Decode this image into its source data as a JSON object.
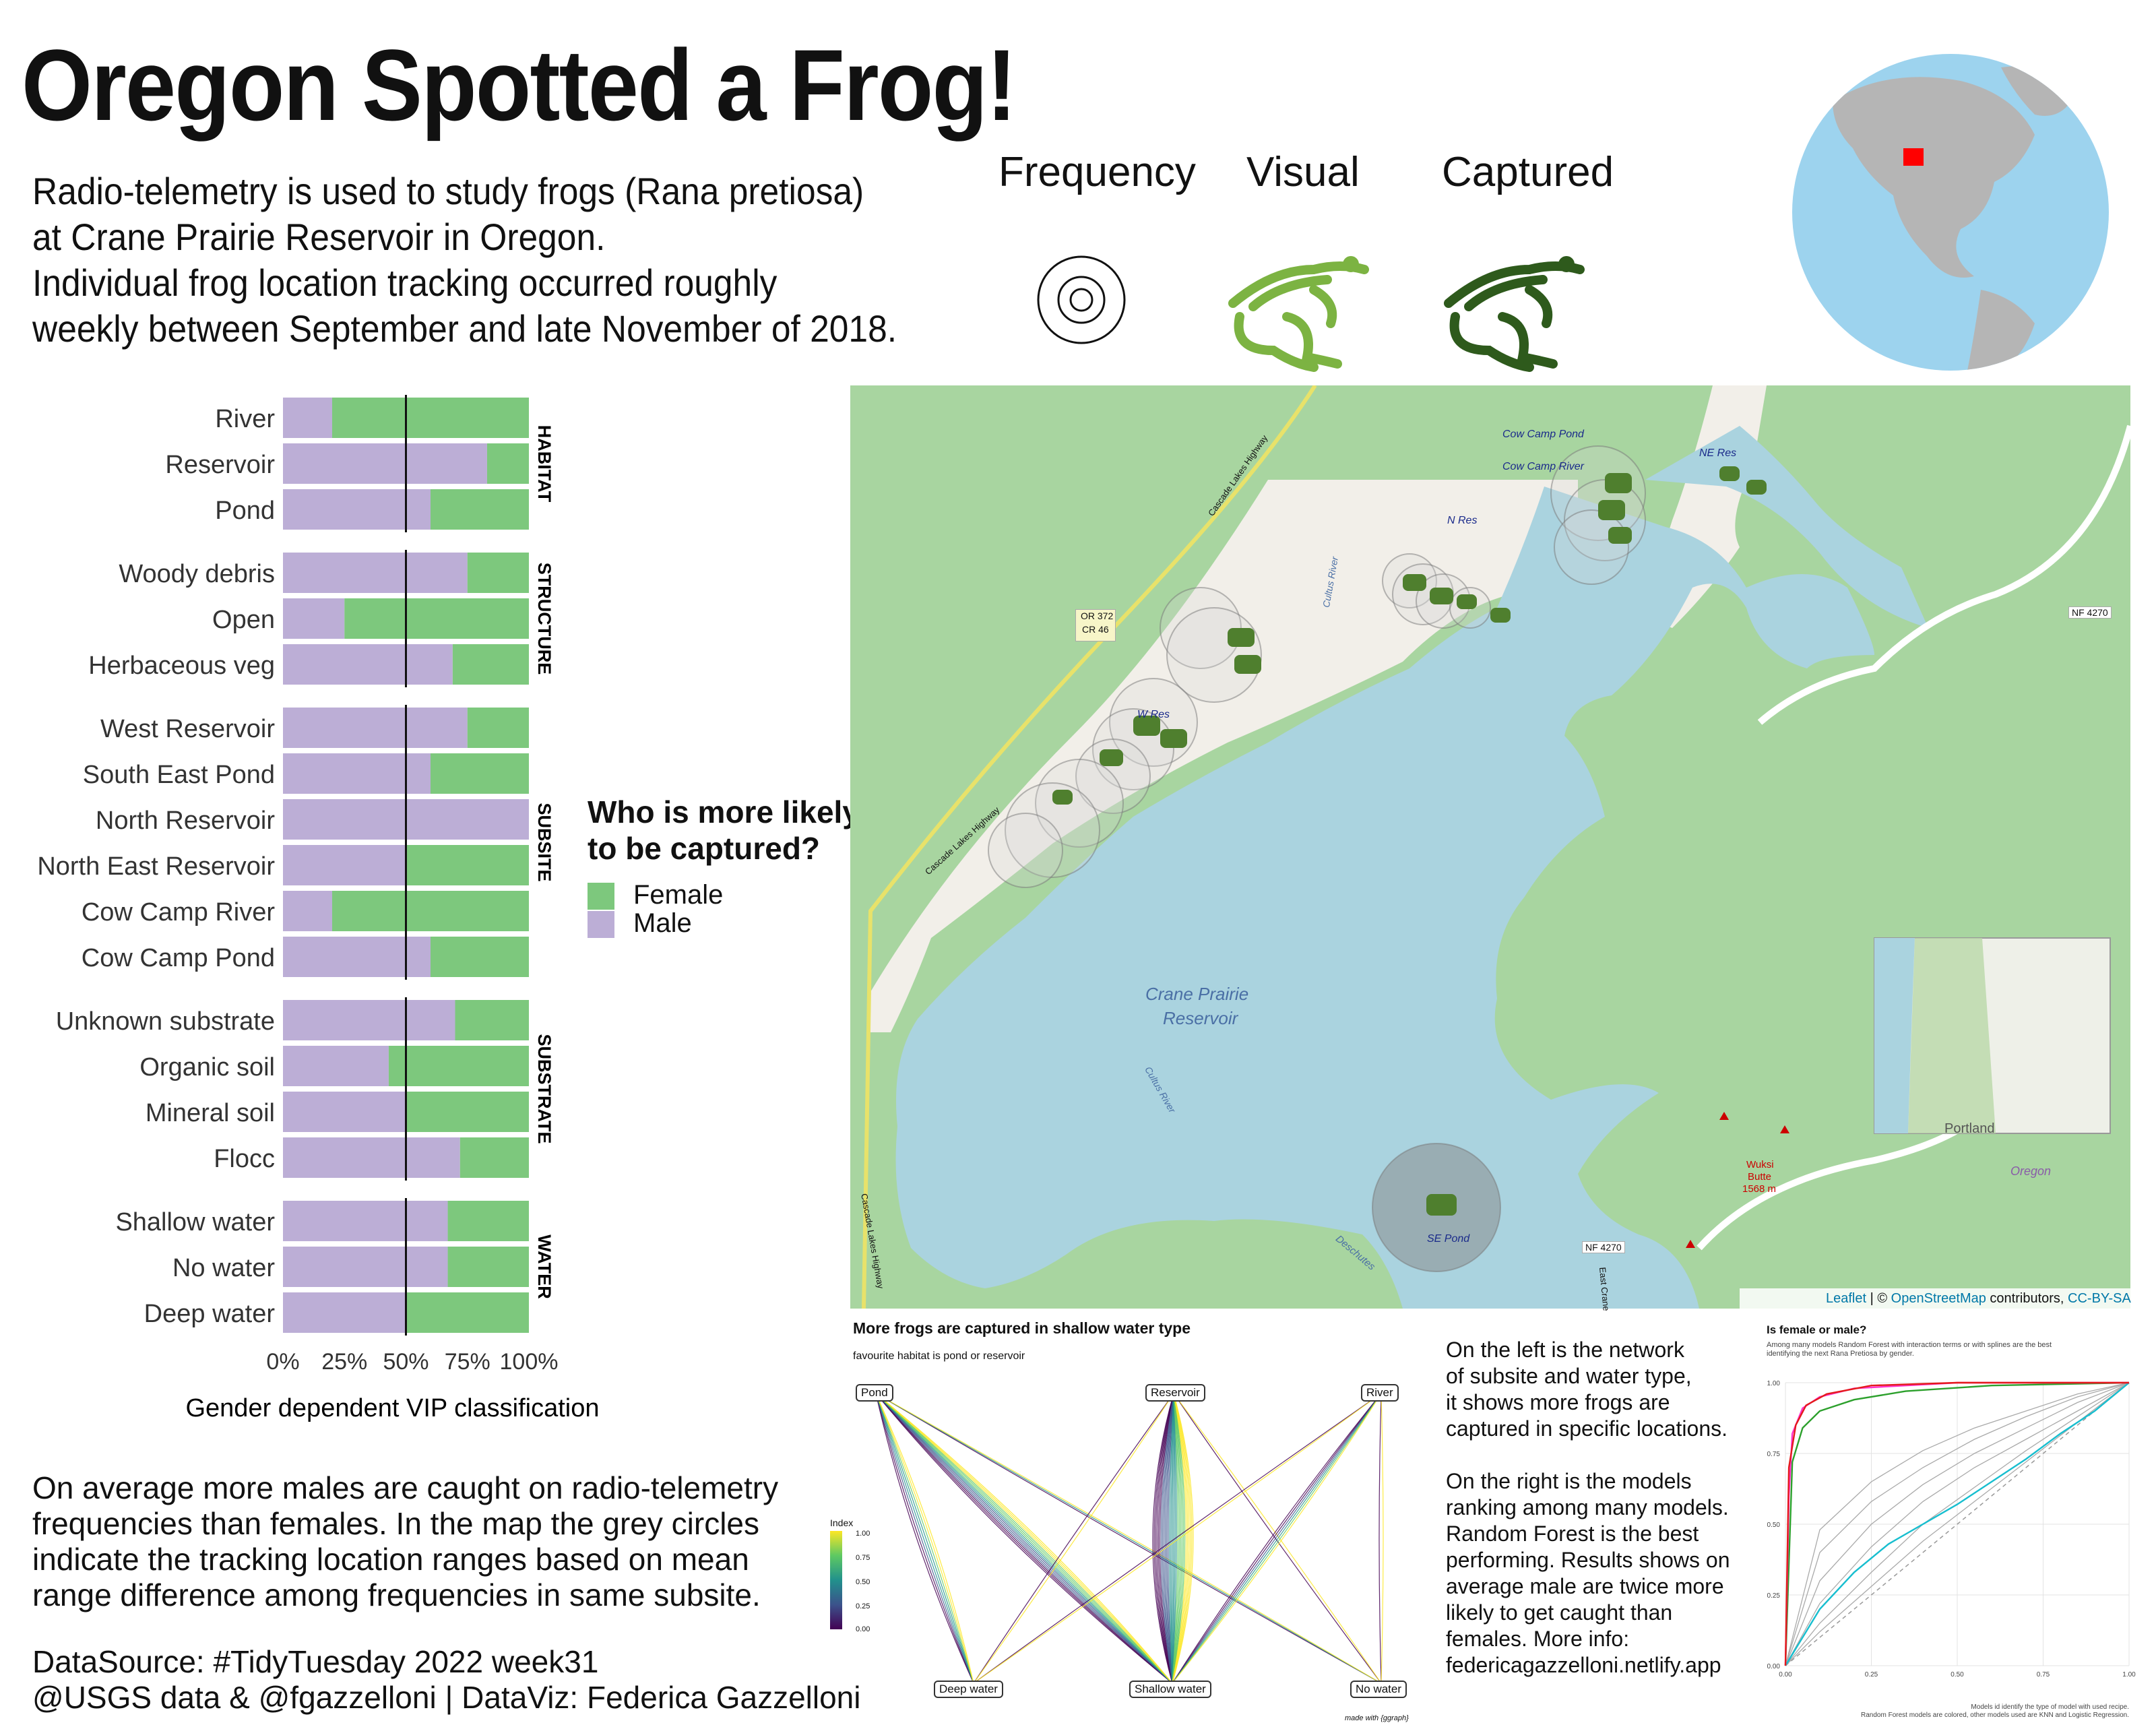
{
  "title": "Oregon Spotted a Frog!",
  "intro": [
    "Radio-telemetry is used to study frogs (Rana pretiosa)",
    "at Crane Prairie Reservoir in Oregon.",
    "Individual frog location tracking occurred roughly",
    "weekly between September and late November of 2018."
  ],
  "map_legend": {
    "frequency": "Frequency",
    "visual": "Visual",
    "captured": "Captured"
  },
  "legend_icons": {
    "frequency": "concentric-circles-icon",
    "visual": "frog-light-icon",
    "captured": "frog-dark-icon"
  },
  "colors": {
    "female": "#7dc87d",
    "male": "#bcaed6",
    "water": "#aad3df",
    "forest": "#a8d5a0",
    "map_land": "#f2efe9",
    "visual_frog": "#7cb342",
    "captured_frog": "#2e5a1c",
    "globe_ocean": "#9dd3ee",
    "globe_land": "#b5b5b5",
    "oregon": "#ff0000"
  },
  "chart_data": [
    {
      "type": "bar",
      "orientation": "horizontal",
      "stacked": true,
      "xlabel": "Gender dependent VIP classification",
      "x_ticks": [
        "0%",
        "25%",
        "50%",
        "75%",
        "100%"
      ],
      "xlim": [
        0,
        1
      ],
      "reference_line": 0.5,
      "legend": {
        "title": "Who is more likely to be captured?",
        "title_lines": [
          "Who is more likely",
          "to be captured?"
        ],
        "entries": [
          "Female",
          "Male"
        ],
        "position": "right"
      },
      "facets": [
        {
          "name": "HABITAT",
          "categories": [
            "River",
            "Reservoir",
            "Pond"
          ],
          "male": [
            0.2,
            0.83,
            0.6
          ],
          "female": [
            0.8,
            0.17,
            0.4
          ]
        },
        {
          "name": "STRUCTURE",
          "categories": [
            "Woody debris",
            "Open",
            "Herbaceous veg"
          ],
          "male": [
            0.75,
            0.25,
            0.69
          ],
          "female": [
            0.25,
            0.75,
            0.31
          ]
        },
        {
          "name": "SUBSITE",
          "categories": [
            "West Reservoir",
            "South East Pond",
            "North Reservoir",
            "North East Reservoir",
            "Cow Camp River",
            "Cow Camp Pond"
          ],
          "male": [
            0.75,
            0.6,
            1.0,
            0.5,
            0.2,
            0.6
          ],
          "female": [
            0.25,
            0.4,
            0.0,
            0.5,
            0.8,
            0.4
          ]
        },
        {
          "name": "SUBSTRATE",
          "categories": [
            "Unknown substrate",
            "Organic soil",
            "Mineral soil",
            "Flocc"
          ],
          "male": [
            0.7,
            0.43,
            0.5,
            0.72
          ],
          "female": [
            0.3,
            0.57,
            0.5,
            0.28
          ]
        },
        {
          "name": "WATER",
          "categories": [
            "Shallow water",
            "No water",
            "Deep water"
          ],
          "male": [
            0.67,
            0.67,
            0.5
          ],
          "female": [
            0.33,
            0.33,
            0.5
          ]
        }
      ]
    },
    {
      "type": "network",
      "title": "More frogs are captured in shallow water type",
      "subtitle": "favourite habitat is pond or reservoir",
      "top_nodes": [
        "Pond",
        "Reservoir",
        "River"
      ],
      "bottom_nodes": [
        "Deep water",
        "Shallow water",
        "No water"
      ],
      "edge_counts": {
        "Pond-Deep water": 8,
        "Pond-Shallow water": 14,
        "Pond-No water": 3,
        "Reservoir-Deep water": 2,
        "Reservoir-Shallow water": 30,
        "Reservoir-No water": 2,
        "River-Deep water": 2,
        "River-Shallow water": 6,
        "River-No water": 2
      },
      "colorbar": {
        "title": "Index",
        "ticks": [
          "1.00",
          "0.75",
          "0.50",
          "0.25",
          "0.00"
        ]
      },
      "caption": "made with {ggraph}"
    },
    {
      "type": "line",
      "title": "Is female or male?",
      "subtitle": [
        "Among many models Random Forest with interaction terms or with splines are the best",
        "identifying the next Rana Pretiosa by gender."
      ],
      "x_ticks": [
        "0.00",
        "0.25",
        "0.50",
        "0.75",
        "1.00"
      ],
      "y_ticks": [
        "1.00",
        "0.75",
        "0.50",
        "0.25",
        "0.00"
      ],
      "xlim": [
        0,
        1
      ],
      "ylim": [
        0,
        1
      ],
      "caption": [
        "Models id identify the type of model with used recipe.",
        "Random Forest models are colored, other models used are KNN and Logistic Regression."
      ],
      "series": [
        {
          "color": "#e41a1c",
          "x": [
            0,
            0.01,
            0.03,
            0.06,
            0.12,
            0.25,
            0.5,
            1
          ],
          "y": [
            0,
            0.7,
            0.85,
            0.92,
            0.96,
            0.99,
            1,
            1
          ]
        },
        {
          "color": "#ff33cc",
          "x": [
            0,
            0.01,
            0.02,
            0.05,
            0.1,
            0.2,
            0.5,
            1
          ],
          "y": [
            0,
            0.6,
            0.82,
            0.91,
            0.95,
            0.98,
            1,
            1
          ]
        },
        {
          "color": "#2ca02c",
          "x": [
            0,
            0.02,
            0.05,
            0.1,
            0.2,
            0.35,
            0.6,
            1
          ],
          "y": [
            0,
            0.72,
            0.84,
            0.9,
            0.94,
            0.97,
            0.99,
            1
          ]
        },
        {
          "color": "#17becf",
          "x": [
            0,
            0.1,
            0.2,
            0.3,
            0.4,
            0.5,
            0.6,
            0.7,
            0.8,
            0.9,
            1
          ],
          "y": [
            0,
            0.2,
            0.33,
            0.43,
            0.5,
            0.57,
            0.65,
            0.73,
            0.82,
            0.9,
            1
          ]
        },
        {
          "color": "#aaaaaa",
          "x": [
            0,
            0.1,
            0.25,
            0.4,
            0.55,
            0.7,
            0.85,
            1
          ],
          "y": [
            0,
            0.3,
            0.5,
            0.64,
            0.75,
            0.84,
            0.93,
            1
          ]
        },
        {
          "color": "#aaaaaa",
          "x": [
            0,
            0.1,
            0.25,
            0.4,
            0.55,
            0.7,
            0.85,
            1
          ],
          "y": [
            0,
            0.22,
            0.42,
            0.58,
            0.7,
            0.8,
            0.9,
            1
          ]
        },
        {
          "color": "#aaaaaa",
          "x": [
            0,
            0.1,
            0.25,
            0.4,
            0.55,
            0.7,
            0.85,
            1
          ],
          "y": [
            0,
            0.15,
            0.33,
            0.5,
            0.63,
            0.76,
            0.88,
            1
          ]
        },
        {
          "color": "#aaaaaa",
          "x": [
            0,
            0.1,
            0.25,
            0.4,
            0.55,
            0.7,
            0.85,
            1
          ],
          "y": [
            0,
            0.4,
            0.58,
            0.7,
            0.8,
            0.88,
            0.95,
            1
          ]
        },
        {
          "color": "#aaaaaa",
          "x": [
            0,
            0.1,
            0.25,
            0.4,
            0.55,
            0.7,
            0.85,
            1
          ],
          "y": [
            0,
            0.12,
            0.28,
            0.44,
            0.58,
            0.72,
            0.86,
            1
          ]
        },
        {
          "color": "#aaaaaa",
          "x": [
            0,
            0.1,
            0.25,
            0.4,
            0.55,
            0.7,
            0.85,
            1
          ],
          "y": [
            0,
            0.48,
            0.65,
            0.76,
            0.84,
            0.9,
            0.96,
            1
          ]
        }
      ]
    }
  ],
  "map": {
    "labels": {
      "cow_camp_pond": "Cow Camp Pond",
      "cow_camp_river": "Cow Camp River",
      "ne_res": "NE Res",
      "n_res": "N Res",
      "w_res": "W Res",
      "se_pond": "SE Pond",
      "lake": "Crane Prairie",
      "lake2": "Reservoir",
      "river": "Cultus River",
      "river2": "Cultus River",
      "highway": "Cascade Lakes Highway",
      "highway2": "Cascade Lakes Highway",
      "route": "OR 372",
      "route2": "CR 46",
      "nf1": "NF 4270",
      "nf2": "NF 4270",
      "butte": "Wuksi",
      "butte2": "Butte",
      "butte3": "1568 m",
      "deschutes": "Deschutes",
      "east": "East Crane",
      "portland": "Portland",
      "oregon": "Oregon"
    },
    "attribution": {
      "leaflet": "Leaflet",
      "sep": " | © ",
      "osm": "OpenStreetMap",
      "contrib": " contributors, ",
      "license": "CC-BY-SA"
    }
  },
  "notes": {
    "bottom_left": [
      "On average more males are caught on radio-telemetry",
      "frequencies than females. In the map the grey circles",
      "indicate the tracking location ranges based on mean",
      "range difference among frequencies in same subsite."
    ],
    "source": [
      "DataSource: #TidyTuesday 2022 week31",
      "@USGS data & @fgazzelloni | DataViz: Federica Gazzelloni"
    ],
    "middle": [
      "On the left is the network",
      "of subsite and water type,",
      "it shows more frogs are",
      "captured in specific locations.",
      "",
      "On the right is the models",
      "ranking among many models.",
      "Random Forest is the best",
      "performing. Results shows on",
      "average male are twice more",
      "likely to get caught than",
      "females. More info:",
      "federicagazzelloni.netlify.app"
    ]
  }
}
